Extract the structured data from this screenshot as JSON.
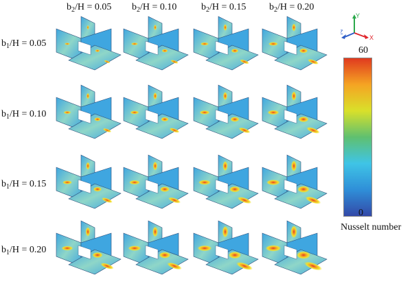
{
  "columns": [
    {
      "sub": "2",
      "value": "0.05"
    },
    {
      "sub": "2",
      "value": "0.10"
    },
    {
      "sub": "2",
      "value": "0.15"
    },
    {
      "sub": "2",
      "value": "0.20"
    }
  ],
  "rows": [
    {
      "sub": "1",
      "value": "0.05"
    },
    {
      "sub": "1",
      "value": "0.10"
    },
    {
      "sub": "1",
      "value": "0.15"
    },
    {
      "sub": "1",
      "value": "0.20"
    }
  ],
  "label_parts": {
    "b": "b",
    "over_h": "/H = "
  },
  "colorbar": {
    "max": "60",
    "min": "0",
    "title": "Nusselt number",
    "colors": [
      "#3349a8",
      "#2f8fd8",
      "#3fc4e6",
      "#5fc070",
      "#d9e02a",
      "#f5a423",
      "#e03a1f"
    ]
  },
  "axes_triad": {
    "x": "X",
    "y": "Y",
    "z": "Z",
    "x_color": "#e0252b",
    "y_color": "#2aa84a",
    "z_color": "#2f5fc8"
  },
  "panel_colors": {
    "base": "#3fa6e0",
    "mid": "#8fd6c8",
    "hot_yellow": "#f2e12c",
    "hot_orange": "#f39c26",
    "hot_red": "#e23a22",
    "edge": "#2c4d7a",
    "white": "#ffffff"
  }
}
